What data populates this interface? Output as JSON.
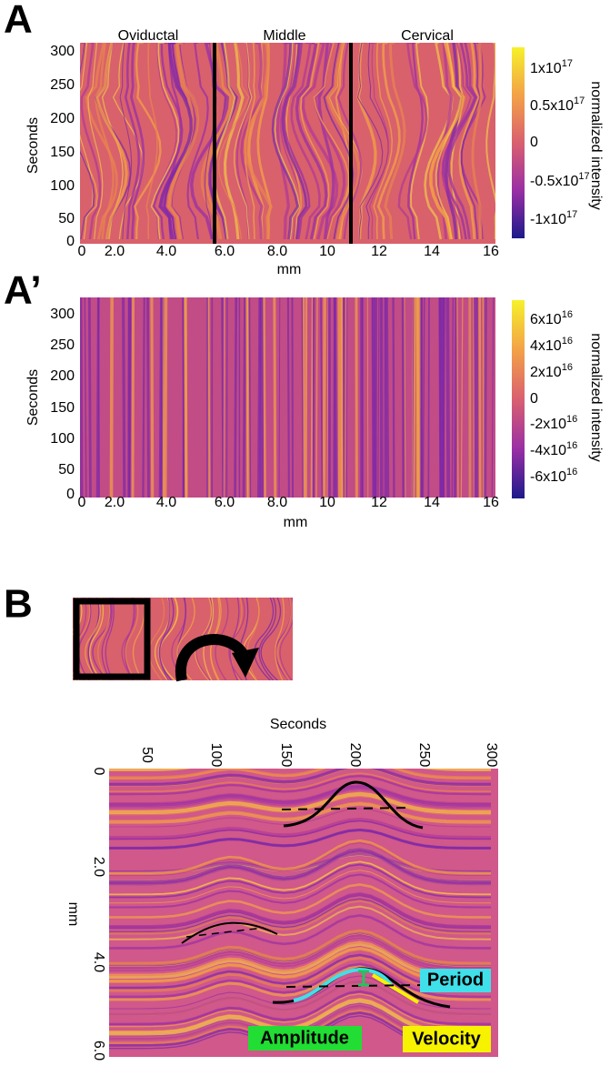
{
  "panels": [
    {
      "label": "A",
      "sections": [
        "Oviductal",
        "Middle",
        "Cervical"
      ],
      "y_label": "Seconds",
      "y_ticks": [
        "0",
        "50",
        "100",
        "150",
        "200",
        "250",
        "300"
      ],
      "x_label": "mm",
      "x_ticks": [
        "0",
        "2.0",
        "4.0",
        "6.0",
        "8.0",
        "10",
        "12",
        "14",
        "16"
      ],
      "colorbar_label": "normalized intensity",
      "colorbar_ticks": [
        {
          "mantissa": "1x10",
          "exponent": "17"
        },
        {
          "mantissa": "0.5x10",
          "exponent": "17"
        },
        {
          "mantissa": "0"
        },
        {
          "mantissa": "-0.5x10",
          "exponent": "17"
        },
        {
          "mantissa": "-1x10",
          "exponent": "17"
        }
      ]
    },
    {
      "label": "A’",
      "y_label": "Seconds",
      "y_ticks": [
        "0",
        "50",
        "100",
        "150",
        "200",
        "250",
        "300"
      ],
      "x_label": "mm",
      "x_ticks": [
        "0",
        "2.0",
        "4.0",
        "6.0",
        "8.0",
        "10",
        "12",
        "14",
        "16"
      ],
      "colorbar_label": "normalized intensity",
      "colorbar_ticks": [
        {
          "mantissa": "6x10",
          "exponent": "16"
        },
        {
          "mantissa": "4x10",
          "exponent": "16"
        },
        {
          "mantissa": "2x10",
          "exponent": "16"
        },
        {
          "mantissa": "0"
        },
        {
          "mantissa": "-2x10",
          "exponent": "16"
        },
        {
          "mantissa": "-4x10",
          "exponent": "16"
        },
        {
          "mantissa": "-6x10",
          "exponent": "16"
        }
      ]
    },
    {
      "label": "B",
      "x_label": "Seconds",
      "x_ticks": [
        "50",
        "100",
        "150",
        "200",
        "250",
        "300"
      ],
      "y_label": "mm",
      "y_ticks": [
        "0",
        "2.0",
        "4.0",
        "6.0"
      ],
      "annotations": [
        "Period",
        "Amplitude",
        "Velocity"
      ]
    }
  ]
}
